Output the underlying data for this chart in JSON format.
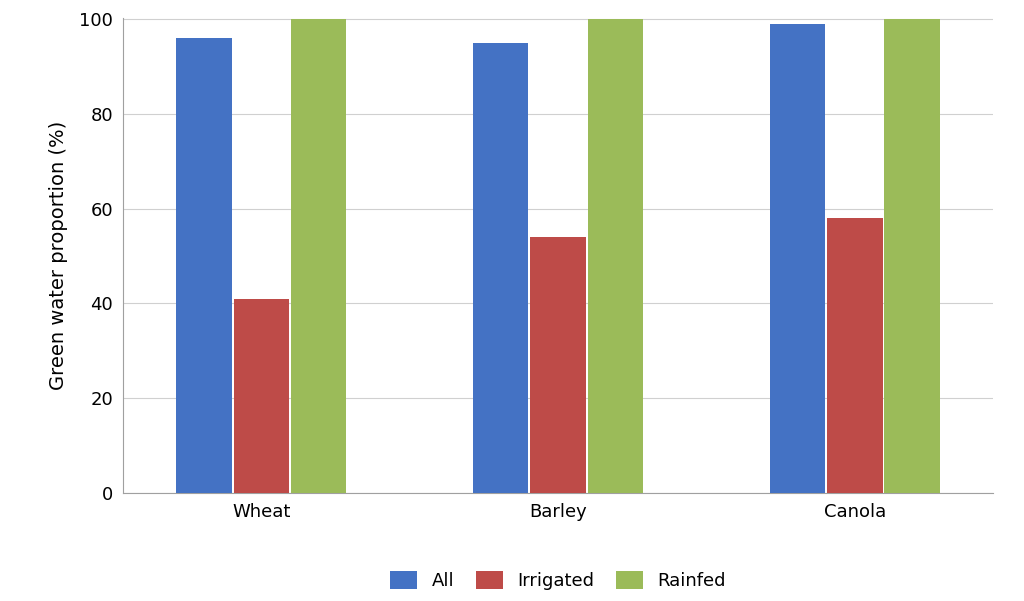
{
  "categories": [
    "Wheat",
    "Barley",
    "Canola"
  ],
  "series": {
    "All": [
      96,
      95,
      99
    ],
    "Irrigated": [
      41,
      54,
      58
    ],
    "Rainfed": [
      100,
      100,
      100
    ]
  },
  "colors": {
    "All": "#4472C4",
    "Irrigated": "#BE4B48",
    "Rainfed": "#9BBB59"
  },
  "ylabel": "Green water proportion (%)",
  "ylim": [
    0,
    100
  ],
  "yticks": [
    0,
    20,
    40,
    60,
    80,
    100
  ],
  "legend_labels": [
    "All",
    "Irrigated",
    "Rainfed"
  ],
  "bar_width": 0.28,
  "background_color": "#FFFFFF",
  "grid_color": "#D0D0D0",
  "axis_fontsize": 14,
  "tick_fontsize": 13,
  "legend_fontsize": 13
}
